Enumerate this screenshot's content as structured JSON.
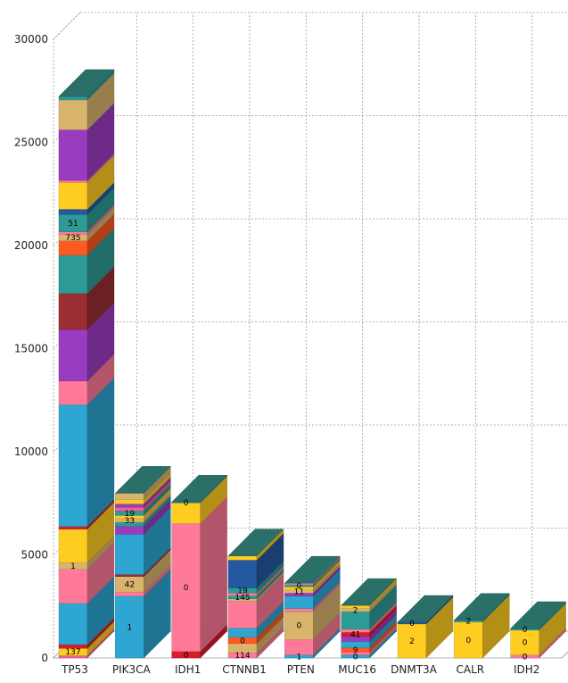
{
  "chart_data": {
    "type": "bar",
    "subtype": "stacked-3d",
    "title": "",
    "xlabel": "",
    "ylabel": "",
    "ylim": [
      0,
      30000
    ],
    "yticks": [
      "0",
      "5000",
      "10000",
      "15000",
      "20000",
      "25000",
      "30000"
    ],
    "grid": true,
    "legend": "none",
    "categories": [
      "TP53",
      "PIK3CA",
      "IDH1",
      "CTNNB1",
      "PTEN",
      "MUC16",
      "DNMT3A",
      "CALR",
      "IDH2"
    ],
    "stacks": [
      {
        "category": "TP53",
        "segments": [
          {
            "value": 120,
            "color": "#f0609a"
          },
          {
            "value": 350,
            "color": "#ffcc22",
            "label": "137"
          },
          {
            "value": 180,
            "color": "#d81c2c"
          },
          {
            "value": 2000,
            "color": "#2ea6d2"
          },
          {
            "value": 1650,
            "color": "#ff7a98"
          },
          {
            "value": 330,
            "color": "#d8b46c",
            "label": "1"
          },
          {
            "value": 1620,
            "color": "#ffcc22"
          },
          {
            "value": 130,
            "color": "#d81c2c"
          },
          {
            "value": 5900,
            "color": "#2ea6d2"
          },
          {
            "value": 1150,
            "color": "#ff7a98"
          },
          {
            "value": 2500,
            "color": "#9a3cc0"
          },
          {
            "value": 1750,
            "color": "#9b2e32"
          },
          {
            "value": 1850,
            "color": "#2e9a96"
          },
          {
            "value": 700,
            "color": "#ff5a20"
          },
          {
            "value": 300,
            "color": "#d8b46c",
            "label": "735"
          },
          {
            "value": 130,
            "color": "#ff7a98"
          },
          {
            "value": 850,
            "color": "#2e9a96",
            "label": "51"
          },
          {
            "value": 250,
            "color": "#2458a0"
          },
          {
            "value": 1300,
            "color": "#ffcc22"
          },
          {
            "value": 100,
            "color": "#ff7a98"
          },
          {
            "value": 2450,
            "color": "#9a3cc0"
          },
          {
            "value": 1450,
            "color": "#d8b46c"
          },
          {
            "value": 170,
            "color": "#2e9a96"
          }
        ]
      },
      {
        "category": "PIK3CA",
        "segments": [
          {
            "value": 3000,
            "color": "#2ea6d2",
            "label": "1"
          },
          {
            "value": 200,
            "color": "#ff7a98"
          },
          {
            "value": 750,
            "color": "#d8b46c",
            "label": "42"
          },
          {
            "value": 100,
            "color": "#9b2e32"
          },
          {
            "value": 1950,
            "color": "#2ea6d2"
          },
          {
            "value": 380,
            "color": "#9a3cc0"
          },
          {
            "value": 200,
            "color": "#2e9a96"
          },
          {
            "value": 180,
            "color": "#d8b46c",
            "label": "33"
          },
          {
            "value": 150,
            "color": "#ffcc22"
          },
          {
            "value": 220,
            "color": "#2e9a96",
            "label": "19"
          },
          {
            "value": 180,
            "color": "#f0609a"
          },
          {
            "value": 160,
            "color": "#9a3cc0"
          },
          {
            "value": 200,
            "color": "#ffcc22"
          },
          {
            "value": 320,
            "color": "#d8b46c"
          }
        ]
      },
      {
        "category": "IDH1",
        "segments": [
          {
            "value": 320,
            "color": "#d81c2c",
            "label": "0"
          },
          {
            "value": 6200,
            "color": "#ff7a98",
            "label": "0"
          },
          {
            "value": 1000,
            "color": "#ffcc22"
          },
          {
            "value": 40,
            "color": "#2e9a96",
            "label": "0"
          }
        ]
      },
      {
        "category": "CTNNB1",
        "segments": [
          {
            "value": 250,
            "color": "#ff7a98",
            "label": "114"
          },
          {
            "value": 450,
            "color": "#d8b46c"
          },
          {
            "value": 300,
            "color": "#ff5a20",
            "label": "0"
          },
          {
            "value": 450,
            "color": "#2ea6d2"
          },
          {
            "value": 1300,
            "color": "#ff7a98"
          },
          {
            "value": 120,
            "color": "#d8b46c"
          },
          {
            "value": 150,
            "color": "#2e9a96",
            "label": "145"
          },
          {
            "value": 130,
            "color": "#ff7a98"
          },
          {
            "value": 250,
            "color": "#2e9a96",
            "label": "19"
          },
          {
            "value": 1350,
            "color": "#2458a0"
          },
          {
            "value": 200,
            "color": "#ffcc22"
          }
        ]
      },
      {
        "category": "PTEN",
        "segments": [
          {
            "value": 150,
            "color": "#2ea6d2",
            "label": "1"
          },
          {
            "value": 750,
            "color": "#ff7a98"
          },
          {
            "value": 1350,
            "color": "#d8b46c",
            "label": "0"
          },
          {
            "value": 150,
            "color": "#ff7a98"
          },
          {
            "value": 600,
            "color": "#2ea6d2"
          },
          {
            "value": 150,
            "color": "#9a3cc0"
          },
          {
            "value": 150,
            "color": "#d8b46c",
            "label": "11"
          },
          {
            "value": 150,
            "color": "#ffcc22"
          },
          {
            "value": 100,
            "color": "#2e9a96",
            "label": "0"
          },
          {
            "value": 80,
            "color": "#ff7a98"
          }
        ]
      },
      {
        "category": "MUC16",
        "segments": [
          {
            "value": 150,
            "color": "#2ea6d2",
            "label": "0"
          },
          {
            "value": 150,
            "color": "#ff7a98"
          },
          {
            "value": 200,
            "color": "#ff5a20",
            "label": "9"
          },
          {
            "value": 300,
            "color": "#2ea6d2"
          },
          {
            "value": 250,
            "color": "#9a3cc0"
          },
          {
            "value": 200,
            "color": "#d81c2c",
            "label": "41"
          },
          {
            "value": 150,
            "color": "#ff7a98"
          },
          {
            "value": 850,
            "color": "#2e9a96"
          },
          {
            "value": 150,
            "color": "#d8b46c",
            "label": "2"
          },
          {
            "value": 150,
            "color": "#ffcc22"
          }
        ]
      },
      {
        "category": "DNMT3A",
        "segments": [
          {
            "value": 1650,
            "color": "#ffcc22",
            "label": "2"
          },
          {
            "value": 80,
            "color": "#2458a0",
            "label": "0"
          }
        ]
      },
      {
        "category": "CALR",
        "segments": [
          {
            "value": 1750,
            "color": "#ffcc22",
            "label": "0"
          },
          {
            "value": 80,
            "color": "#2e9a96",
            "label": "2"
          }
        ]
      },
      {
        "category": "IDH2",
        "segments": [
          {
            "value": 150,
            "color": "#ff7a98",
            "label": "0"
          },
          {
            "value": 1200,
            "color": "#ffcc22",
            "label": "0"
          },
          {
            "value": 80,
            "color": "#2e9a96",
            "label": "0"
          }
        ]
      }
    ],
    "colors": {
      "top_face": "#2a7068",
      "grid": "#9a9a9a",
      "axis_text": "#222222",
      "floor": "#ffffff"
    }
  }
}
